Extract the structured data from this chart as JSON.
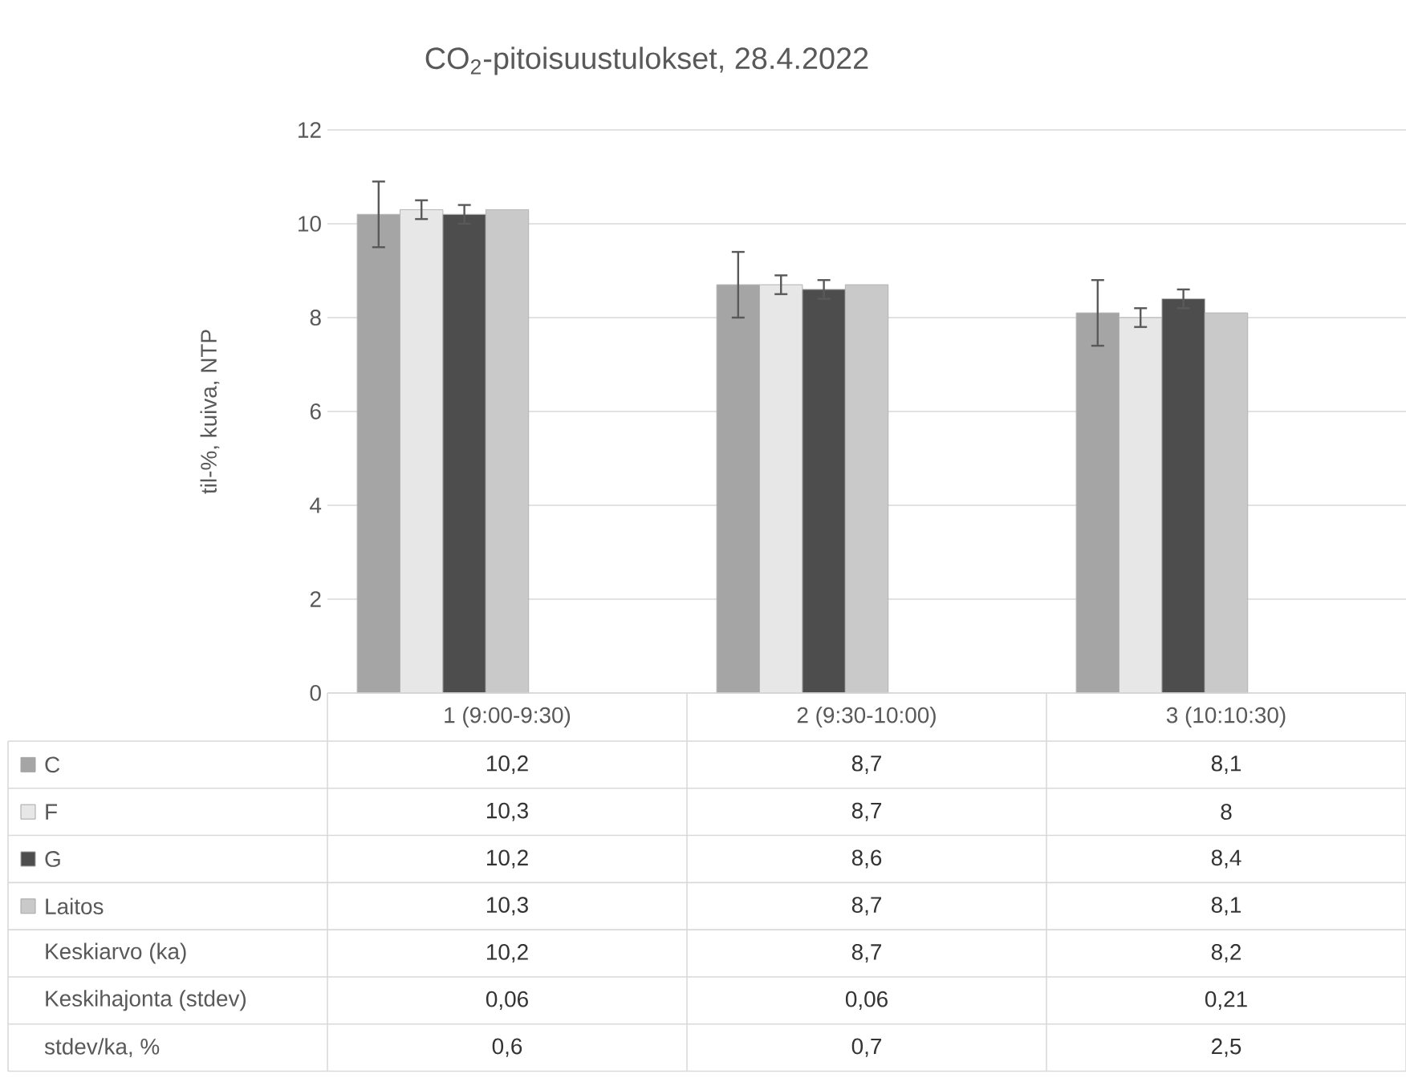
{
  "chart_data": {
    "type": "bar",
    "title": "CO$_{2}$-pitoisuustulokset, 28.4.2022",
    "ylabel": "til-%, kuiva, NTP",
    "categories": [
      "1 (9:00-9:30)",
      "2 (9:30-10:00)",
      "3 (10:10:30)"
    ],
    "series": [
      {
        "name": "C",
        "color": "#a5a5a5",
        "values": [
          10.2,
          8.7,
          8.1
        ],
        "errors": [
          0.7,
          0.7,
          0.7
        ],
        "value_labels": [
          "10,2",
          "8,7",
          "8,1"
        ]
      },
      {
        "name": "F",
        "color": "#e7e7e7",
        "values": [
          10.3,
          8.7,
          8
        ],
        "errors": [
          0.2,
          0.2,
          0.2
        ],
        "value_labels": [
          "10,3",
          "8,7",
          "8"
        ]
      },
      {
        "name": "G",
        "color": "#4d4d4d",
        "values": [
          10.2,
          8.6,
          8.4
        ],
        "errors": [
          0.2,
          0.2,
          0.2
        ],
        "value_labels": [
          "10,2",
          "8,6",
          "8,4"
        ]
      },
      {
        "name": "Laitos",
        "color": "#c9c9c9",
        "values": [
          10.3,
          8.7,
          8.1
        ],
        "value_labels": [
          "10,3",
          "8,7",
          "8,1"
        ]
      }
    ],
    "ylim": [
      0,
      12
    ],
    "yticks": [
      0,
      2,
      4,
      6,
      8,
      10,
      12
    ],
    "grid": "y",
    "legend": "bottom",
    "annotations": [
      "Keskiarvo (ka)",
      "10,2",
      "8,7",
      "8,2",
      "Keskihajonta (stdev)",
      "0,06",
      "0,06",
      "0,21",
      "stdev/ka, %",
      "0,6",
      "0,7",
      "2,5"
    ]
  }
}
